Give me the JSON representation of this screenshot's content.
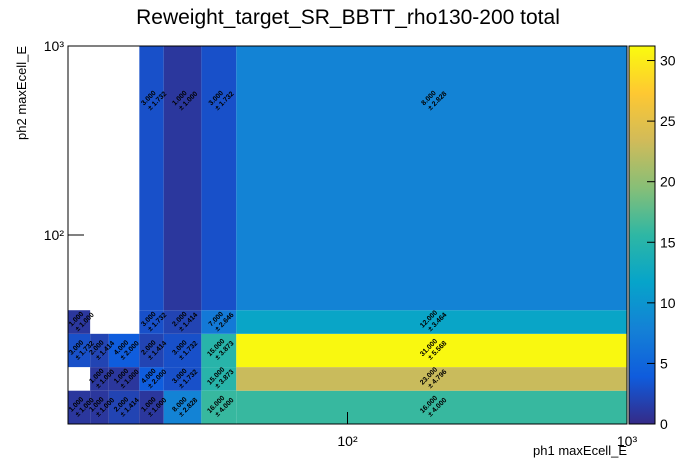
{
  "chart_data": {
    "type": "heatmap",
    "title": "Reweight_target_SR_BBTT_rho130-200 total",
    "x_label": "ph1 maxEcell_E",
    "y_label": "ph2 maxEcell_E",
    "log_x": true,
    "log_y": true,
    "x_edges": [
      10,
      12,
      14,
      18,
      22,
      30,
      40,
      1000
    ],
    "y_edges": [
      10,
      15,
      20,
      30,
      40,
      1000
    ],
    "z": [
      [
        1,
        1,
        2,
        1,
        8,
        16,
        16
      ],
      [
        null,
        1,
        1,
        4,
        3,
        15,
        23
      ],
      [
        3,
        2,
        4,
        2,
        3,
        15,
        31
      ],
      [
        1,
        null,
        null,
        3,
        2,
        7,
        12
      ],
      [
        null,
        null,
        null,
        3,
        1,
        3,
        8
      ]
    ],
    "z_labels": [
      [
        "1.000",
        "1.000",
        "2.000",
        "1.000",
        "8.000",
        "16.000",
        "16.000"
      ],
      [
        null,
        "1.000",
        "1.000",
        "4.000",
        "3.000",
        "15.000",
        "23.000"
      ],
      [
        "3.000",
        "2.000",
        "4.000",
        "2.000",
        "3.000",
        "15.000",
        "31.000"
      ],
      [
        "1.000",
        null,
        null,
        "3.000",
        "2.000",
        "7.000",
        "12.000"
      ],
      [
        null,
        null,
        null,
        "3.000",
        "1.000",
        "3.000",
        "8.000"
      ]
    ],
    "error_labels": [
      [
        "± 1.000",
        "± 1.000",
        "± 1.414",
        "± 1.000",
        "± 2.828",
        "± 4.000",
        "± 4.000"
      ],
      [
        null,
        "± 1.000",
        "± 1.000",
        "± 2.000",
        "± 1.732",
        "± 3.873",
        "± 4.796"
      ],
      [
        "± 1.732",
        "± 1.414",
        "± 2.000",
        "± 1.414",
        "± 1.732",
        "± 3.873",
        "± 5.568"
      ],
      [
        "± 1.000",
        null,
        null,
        "± 1.732",
        "± 1.414",
        "± 2.646",
        "± 3.464"
      ],
      [
        null,
        null,
        null,
        "± 1.732",
        "± 1.000",
        "± 1.732",
        "± 2.828"
      ]
    ],
    "xlim": [
      10,
      1000
    ],
    "ylim": [
      10,
      1000
    ],
    "zlim": [
      0,
      31.2
    ],
    "xticks": [
      {
        "value": 100,
        "label": "10²"
      },
      {
        "value": 1000,
        "label": "10³"
      }
    ],
    "yticks": [
      {
        "value": 100,
        "label": "10²"
      },
      {
        "value": 1000,
        "label": "10³"
      }
    ],
    "zticks": [
      0,
      5,
      10,
      15,
      20,
      25,
      30
    ],
    "palette": [
      "#352a87",
      "#0f5cdd",
      "#1481d6",
      "#06a4ca",
      "#2eb7a4",
      "#87bf77",
      "#d1bb59",
      "#fec832",
      "#f9fb0e"
    ]
  }
}
